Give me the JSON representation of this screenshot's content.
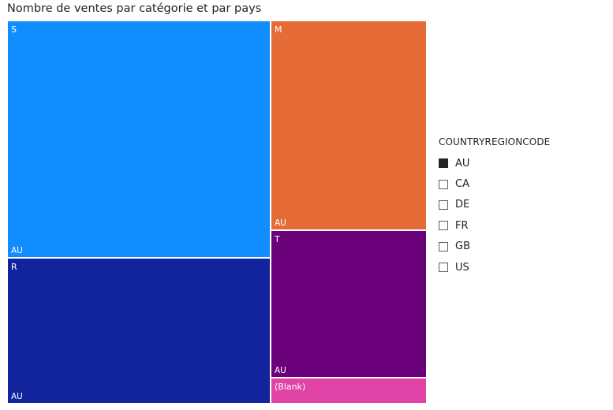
{
  "chart_data": {
    "type": "treemap",
    "title": "Nombre de ventes par catégorie et par pays",
    "legend": {
      "title": "COUNTRYREGIONCODE",
      "placement": "right",
      "items": [
        {
          "label": "AU",
          "checked": true
        },
        {
          "label": "CA",
          "checked": false
        },
        {
          "label": "DE",
          "checked": false
        },
        {
          "label": "FR",
          "checked": false
        },
        {
          "label": "GB",
          "checked": false
        },
        {
          "label": "US",
          "checked": false
        }
      ]
    },
    "categories": [
      {
        "name": "S",
        "country": "AU",
        "share": 0.388,
        "color": "#118dff"
      },
      {
        "name": "R",
        "country": "AU",
        "share": 0.238,
        "color": "#12239e"
      },
      {
        "name": "M",
        "country": "AU",
        "share": 0.203,
        "color": "#e66c37"
      },
      {
        "name": "T",
        "country": "AU",
        "share": 0.143,
        "color": "#6b007b"
      },
      {
        "name": "(Blank)",
        "country": "",
        "share": 0.025,
        "color": "#e044a7"
      }
    ]
  }
}
